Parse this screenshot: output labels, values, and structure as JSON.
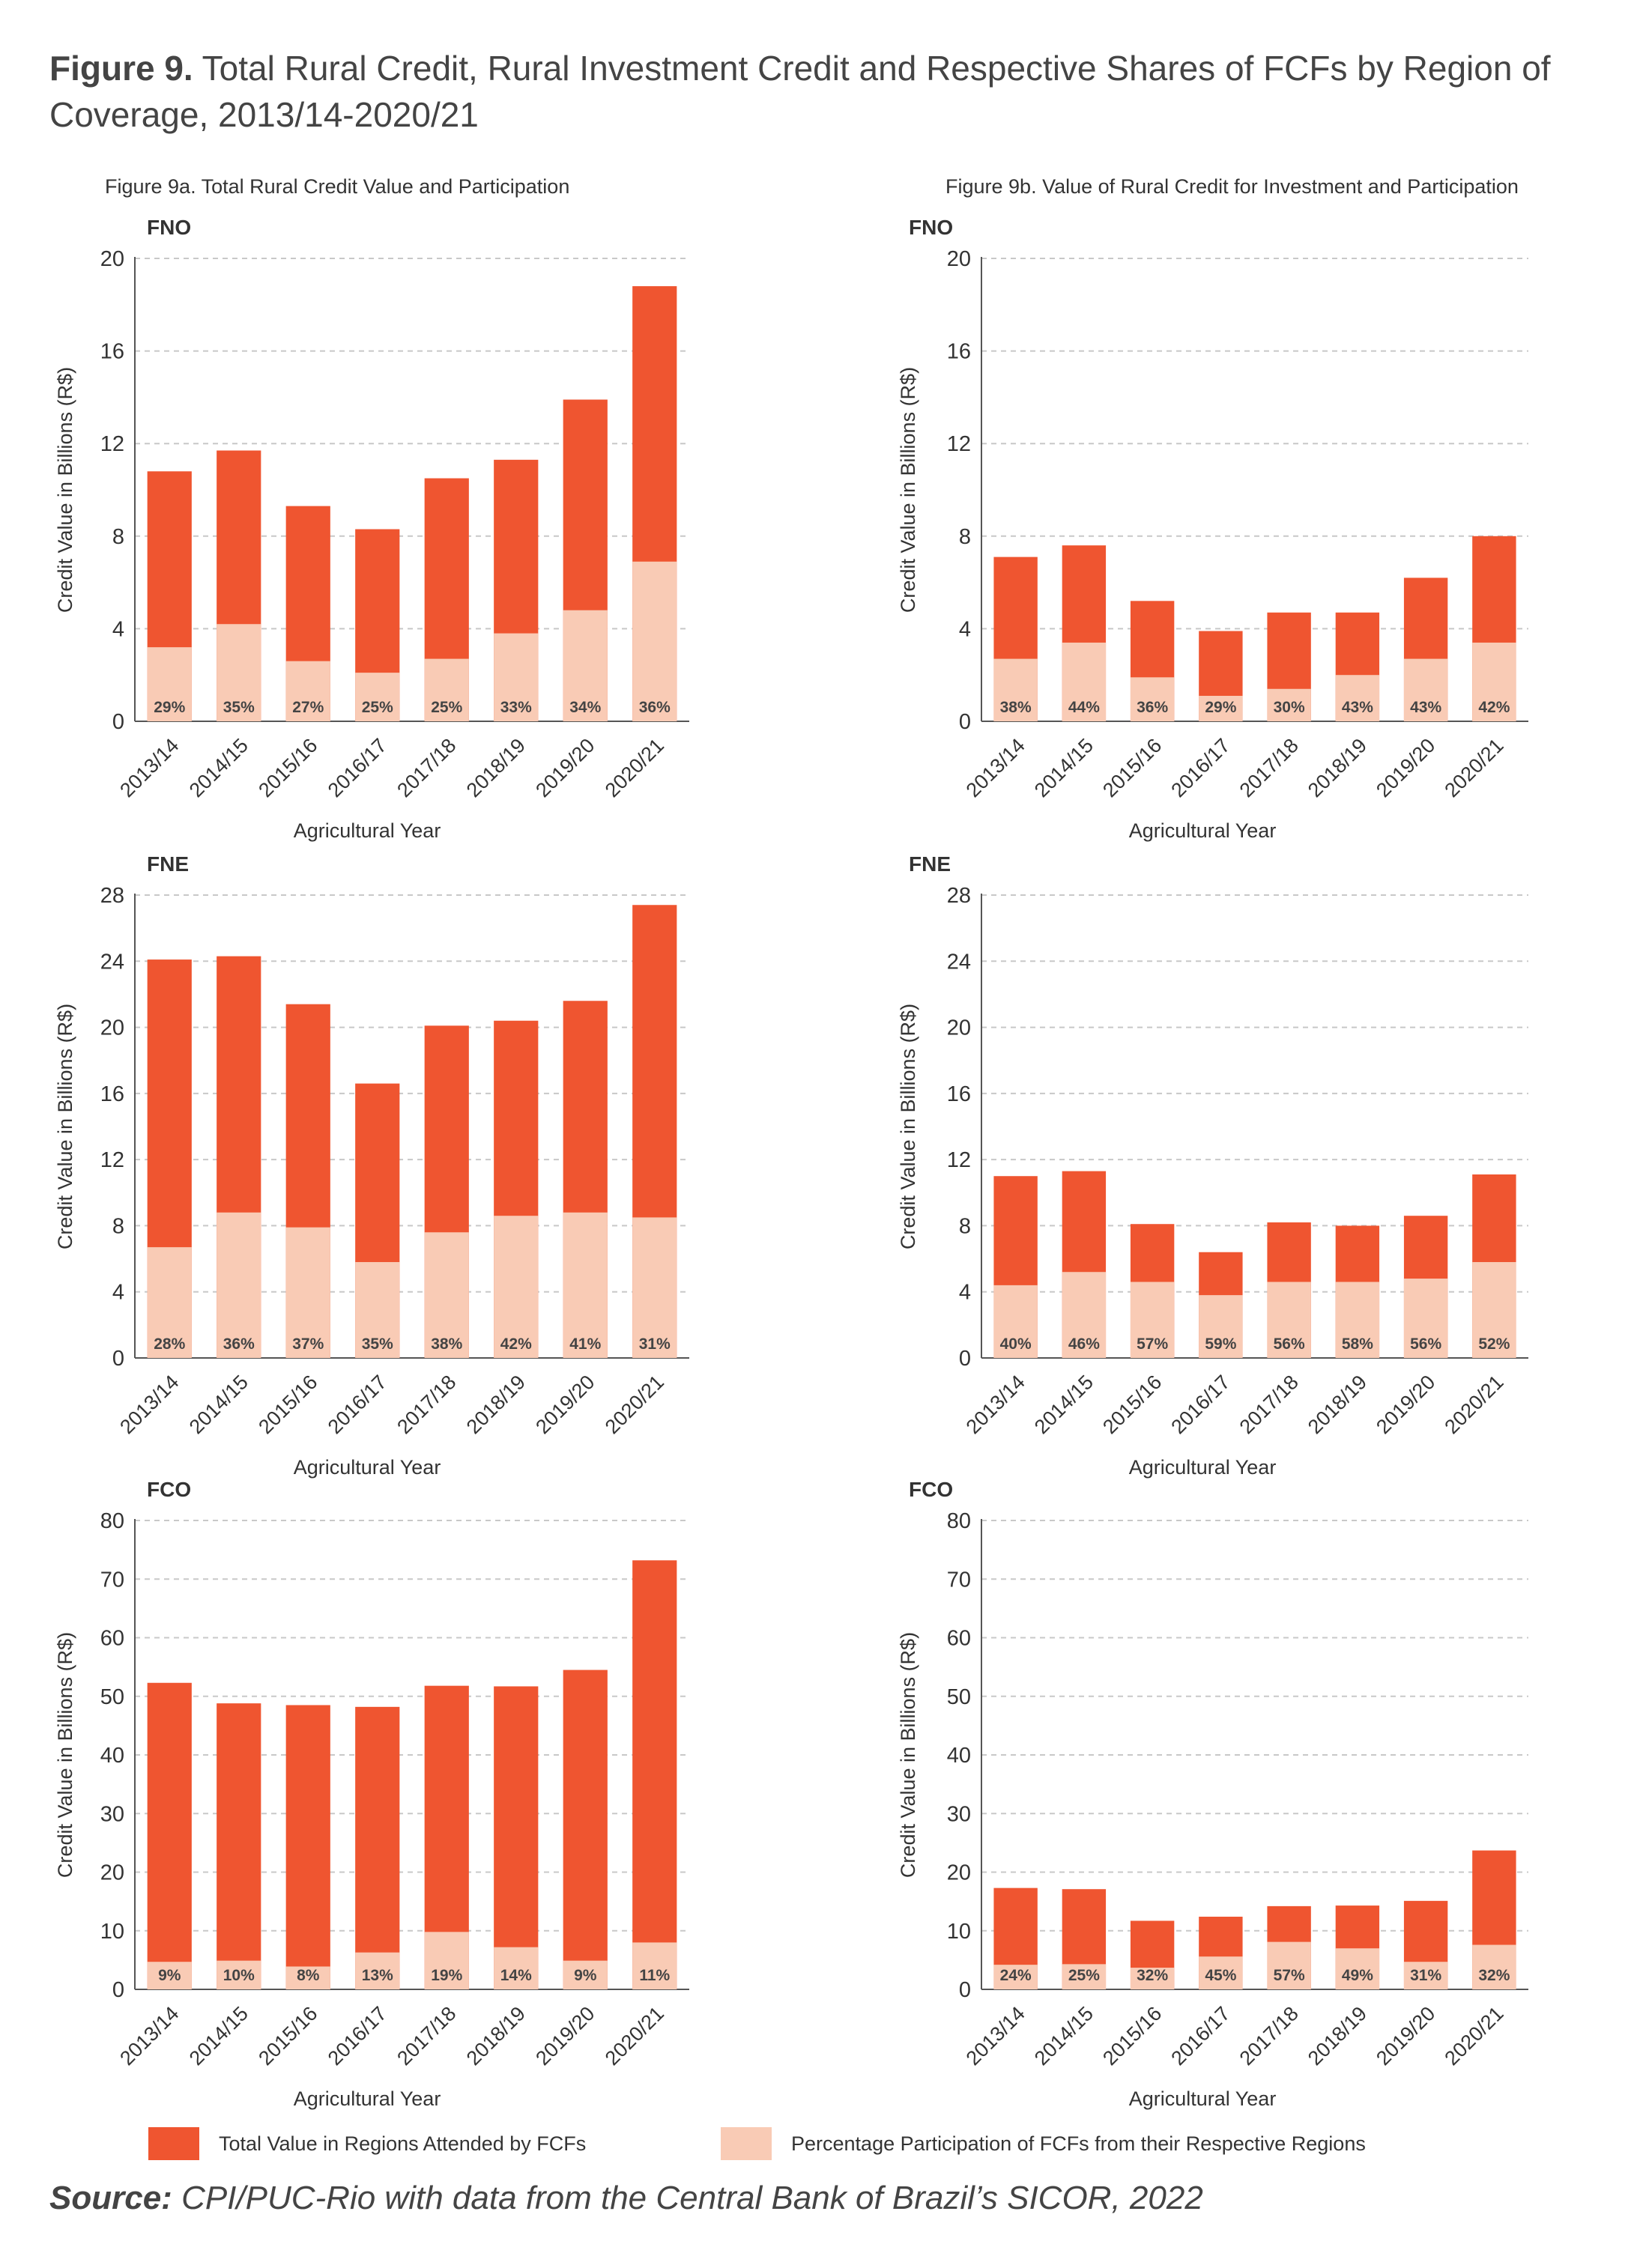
{
  "figure": {
    "label": "Figure 9.",
    "title": "Total Rural Credit, Rural Investment Credit and Respective Shares of FCFs by Region of Coverage, 2013/14-2020/21"
  },
  "columns": {
    "left_title": "Figure 9a. Total Rural Credit Value and Participation",
    "right_title": "Figure 9b. Value of Rural Credit for Investment and Participation"
  },
  "colors": {
    "total": "#ef5530",
    "share": "#f9cbb5",
    "grid": "#c8c8c8",
    "axis": "#555555"
  },
  "legend": {
    "total": "Total Value in Regions Attended by FCFs",
    "share": "Percentage Participation of FCFs from their Respective Regions"
  },
  "source": {
    "label": "Source:",
    "text": "CPI/PUC-Rio with data from the Central Bank of Brazil’s SICOR, 2022"
  },
  "chart_data": [
    {
      "type": "bar",
      "panel": "9a",
      "region": "FNO",
      "categories": [
        "2013/14",
        "2014/15",
        "2015/16",
        "2016/17",
        "2017/18",
        "2018/19",
        "2019/20",
        "2020/21"
      ],
      "series": [
        {
          "name": "Total Value in Regions Attended by FCFs",
          "values": [
            10.8,
            11.7,
            9.3,
            8.3,
            10.5,
            11.3,
            13.9,
            18.8
          ]
        },
        {
          "name": "Percentage Participation of FCFs from their Respective Regions",
          "values": [
            3.2,
            4.2,
            2.6,
            2.1,
            2.7,
            3.8,
            4.8,
            6.9
          ]
        }
      ],
      "labels": [
        "29%",
        "35%",
        "27%",
        "25%",
        "25%",
        "33%",
        "34%",
        "36%"
      ],
      "ylabel": "Credit Value in Billions (R$)",
      "xlabel": "Agricultural Year",
      "yticks": [
        0,
        4,
        8,
        12,
        16,
        20
      ],
      "ylim": [
        0,
        20
      ]
    },
    {
      "type": "bar",
      "panel": "9b",
      "region": "FNO",
      "categories": [
        "2013/14",
        "2014/15",
        "2015/16",
        "2016/17",
        "2017/18",
        "2018/19",
        "2019/20",
        "2020/21"
      ],
      "series": [
        {
          "name": "Total Value in Regions Attended by FCFs",
          "values": [
            7.1,
            7.6,
            5.2,
            3.9,
            4.7,
            4.7,
            6.2,
            8.0
          ]
        },
        {
          "name": "Percentage Participation of FCFs from their Respective Regions",
          "values": [
            2.7,
            3.4,
            1.9,
            1.1,
            1.4,
            2.0,
            2.7,
            3.4
          ]
        }
      ],
      "labels": [
        "38%",
        "44%",
        "36%",
        "29%",
        "30%",
        "43%",
        "43%",
        "42%"
      ],
      "ylabel": "Credit Value in Billions (R$)",
      "xlabel": "Agricultural Year",
      "yticks": [
        0,
        4,
        8,
        12,
        16,
        20
      ],
      "ylim": [
        0,
        20
      ]
    },
    {
      "type": "bar",
      "panel": "9a",
      "region": "FNE",
      "categories": [
        "2013/14",
        "2014/15",
        "2015/16",
        "2016/17",
        "2017/18",
        "2018/19",
        "2019/20",
        "2020/21"
      ],
      "series": [
        {
          "name": "Total Value in Regions Attended by FCFs",
          "values": [
            24.1,
            24.3,
            21.4,
            16.6,
            20.1,
            20.4,
            21.6,
            27.4
          ]
        },
        {
          "name": "Percentage Participation of FCFs from their Respective Regions",
          "values": [
            6.7,
            8.8,
            7.9,
            5.8,
            7.6,
            8.6,
            8.8,
            8.5
          ]
        }
      ],
      "labels": [
        "28%",
        "36%",
        "37%",
        "35%",
        "38%",
        "42%",
        "41%",
        "31%"
      ],
      "ylabel": "Credit Value in Billions (R$)",
      "xlabel": "Agricultural Year",
      "yticks": [
        0,
        4,
        8,
        12,
        16,
        20,
        24,
        28
      ],
      "ylim": [
        0,
        28
      ]
    },
    {
      "type": "bar",
      "panel": "9b",
      "region": "FNE",
      "categories": [
        "2013/14",
        "2014/15",
        "2015/16",
        "2016/17",
        "2017/18",
        "2018/19",
        "2019/20",
        "2020/21"
      ],
      "series": [
        {
          "name": "Total Value in Regions Attended by FCFs",
          "values": [
            11.0,
            11.3,
            8.1,
            6.4,
            8.2,
            8.0,
            8.6,
            11.1
          ]
        },
        {
          "name": "Percentage Participation of FCFs from their Respective Regions",
          "values": [
            4.4,
            5.2,
            4.6,
            3.8,
            4.6,
            4.6,
            4.8,
            5.8
          ]
        }
      ],
      "labels": [
        "40%",
        "46%",
        "57%",
        "59%",
        "56%",
        "58%",
        "56%",
        "52%"
      ],
      "ylabel": "Credit Value in Billions (R$)",
      "xlabel": "Agricultural Year",
      "yticks": [
        0,
        4,
        8,
        12,
        16,
        20,
        24,
        28
      ],
      "ylim": [
        0,
        28
      ]
    },
    {
      "type": "bar",
      "panel": "9a",
      "region": "FCO",
      "categories": [
        "2013/14",
        "2014/15",
        "2015/16",
        "2016/17",
        "2017/18",
        "2018/19",
        "2019/20",
        "2020/21"
      ],
      "series": [
        {
          "name": "Total Value in Regions Attended by FCFs",
          "values": [
            52.3,
            48.8,
            48.5,
            48.2,
            51.8,
            51.7,
            54.5,
            73.2
          ]
        },
        {
          "name": "Percentage Participation of FCFs from their Respective Regions",
          "values": [
            4.7,
            4.9,
            3.9,
            6.3,
            9.8,
            7.2,
            4.9,
            8.0
          ]
        }
      ],
      "labels": [
        "9%",
        "10%",
        "8%",
        "13%",
        "19%",
        "14%",
        "9%",
        "11%"
      ],
      "ylabel": "Credit Value in Billions (R$)",
      "xlabel": "Agricultural Year",
      "yticks": [
        0,
        10,
        20,
        30,
        40,
        50,
        60,
        70,
        80
      ],
      "ylim": [
        0,
        80
      ]
    },
    {
      "type": "bar",
      "panel": "9b",
      "region": "FCO",
      "categories": [
        "2013/14",
        "2014/15",
        "2015/16",
        "2016/17",
        "2017/18",
        "2018/19",
        "2019/20",
        "2020/21"
      ],
      "series": [
        {
          "name": "Total Value in Regions Attended by FCFs",
          "values": [
            17.3,
            17.1,
            11.7,
            12.4,
            14.2,
            14.3,
            15.1,
            23.7
          ]
        },
        {
          "name": "Percentage Participation of FCFs from their Respective Regions",
          "values": [
            4.2,
            4.3,
            3.7,
            5.6,
            8.1,
            7.0,
            4.7,
            7.6
          ]
        }
      ],
      "labels": [
        "24%",
        "25%",
        "32%",
        "45%",
        "57%",
        "49%",
        "31%",
        "32%"
      ],
      "ylabel": "Credit Value in Billions (R$)",
      "xlabel": "Agricultural Year",
      "yticks": [
        0,
        10,
        20,
        30,
        40,
        50,
        60,
        70,
        80
      ],
      "ylim": [
        0,
        80
      ]
    }
  ]
}
